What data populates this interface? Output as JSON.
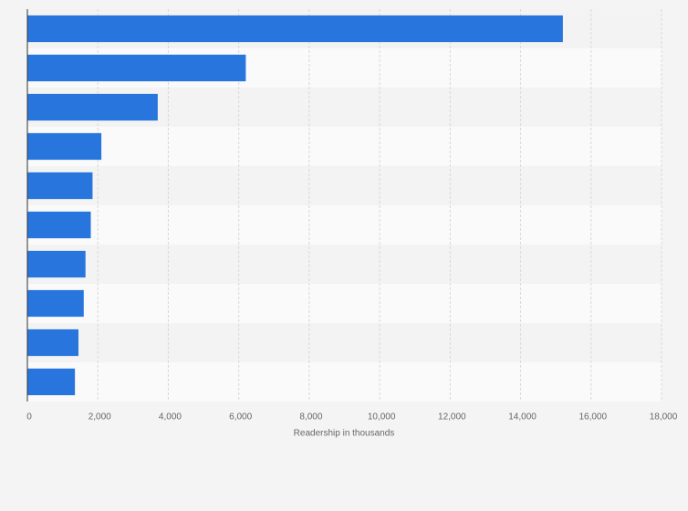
{
  "chart_data": {
    "type": "bar",
    "orientation": "horizontal",
    "x_label": "Readership in thousands",
    "categories": [
      null,
      null,
      null,
      null,
      null,
      null,
      null,
      null,
      null,
      null
    ],
    "values": [
      15200,
      6200,
      3700,
      2100,
      1850,
      1800,
      1650,
      1600,
      1450,
      1350
    ],
    "color": "#2876dd",
    "xlim": [
      0,
      18000
    ],
    "xticks": [
      0,
      {
        "value": 2000,
        "label": "2,000"
      },
      {
        "value": 4000,
        "label": "4,000"
      },
      {
        "value": 6000,
        "label": "6,000"
      },
      {
        "value": 8000,
        "label": "8,000"
      },
      {
        "value": 10000,
        "label": "10,000"
      },
      {
        "value": 12000,
        "label": "12,000"
      },
      {
        "value": 14000,
        "label": "14,000"
      },
      {
        "value": 16000,
        "label": "16,000"
      },
      {
        "value": 18000,
        "label": "18,000"
      }
    ],
    "grid": true
  }
}
